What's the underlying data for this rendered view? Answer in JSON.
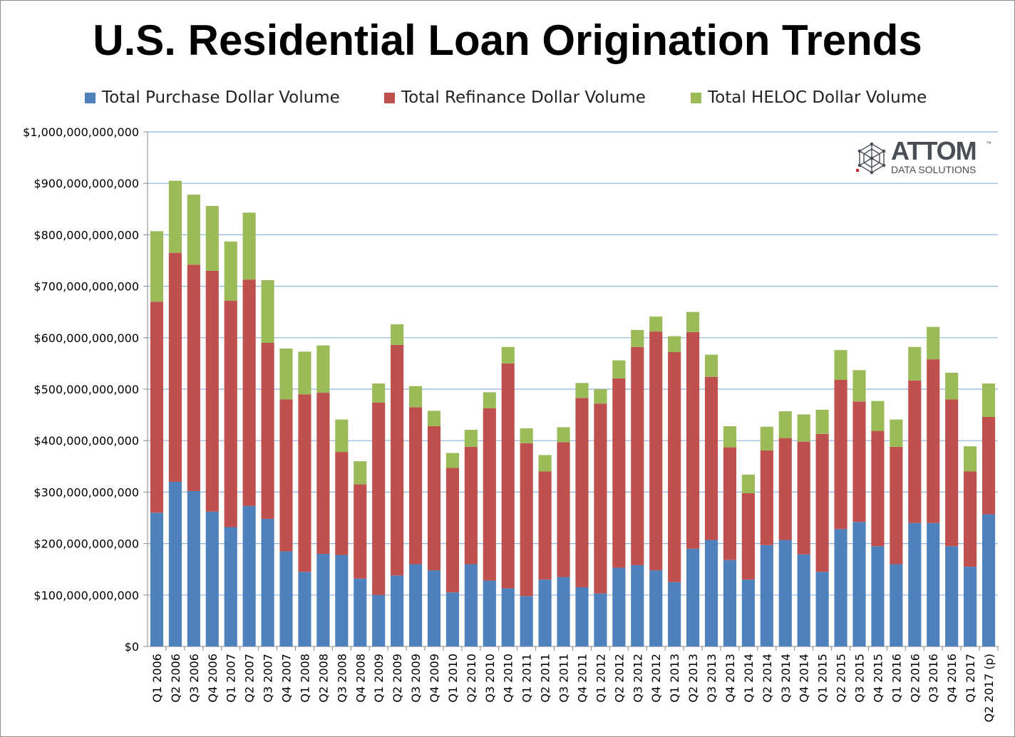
{
  "chart_data": {
    "type": "bar",
    "stacked": true,
    "title": "U.S. Residential Loan Origination Trends",
    "categories": [
      "Q1 2006",
      "Q2 2006",
      "Q3 2006",
      "Q4 2006",
      "Q1 2007",
      "Q2 2007",
      "Q3 2007",
      "Q4 2007",
      "Q1 2008",
      "Q2 2008",
      "Q3 2008",
      "Q4 2008",
      "Q1 2009",
      "Q2 2009",
      "Q3 2009",
      "Q4 2009",
      "Q1 2010",
      "Q2 2010",
      "Q3 2010",
      "Q4 2010",
      "Q1 2011",
      "Q2 2011",
      "Q3 2011",
      "Q4 2011",
      "Q1 2012",
      "Q2 2012",
      "Q3 2012",
      "Q4 2012",
      "Q1 2013",
      "Q2 2013",
      "Q3 2013",
      "Q4 2013",
      "Q1 2014",
      "Q2 2014",
      "Q3 2014",
      "Q4 2014",
      "Q1 2015",
      "Q2 2015",
      "Q3 2015",
      "Q4 2015",
      "Q1 2016",
      "Q2 2016",
      "Q3 2016",
      "Q4 2016",
      "Q1 2017",
      "Q2 2017 (p)"
    ],
    "series": [
      {
        "name": "Total Purchase Dollar Volume",
        "color": "#4f81bd",
        "values": [
          260,
          320,
          302,
          262,
          232,
          273,
          248,
          185,
          145,
          180,
          178,
          132,
          100,
          138,
          160,
          148,
          105,
          160,
          128,
          113,
          98,
          130,
          135,
          115,
          103,
          153,
          158,
          148,
          125,
          190,
          207,
          168,
          130,
          197,
          207,
          179,
          145,
          228,
          242,
          195,
          160,
          240,
          240,
          195,
          155,
          257
        ]
      },
      {
        "name": "Total Refinance Dollar Volume",
        "color": "#c0504d",
        "values": [
          410,
          445,
          440,
          468,
          440,
          440,
          342,
          295,
          345,
          313,
          200,
          183,
          374,
          448,
          305,
          280,
          242,
          228,
          335,
          437,
          297,
          210,
          262,
          368,
          369,
          368,
          424,
          464,
          447,
          421,
          317,
          219,
          168,
          184,
          198,
          219,
          268,
          290,
          234,
          224,
          228,
          277,
          318,
          285,
          185,
          189
        ]
      },
      {
        "name": "Total HELOC Dollar Volume",
        "color": "#9bbb59",
        "values": [
          137,
          140,
          136,
          126,
          115,
          130,
          122,
          99,
          83,
          92,
          63,
          45,
          37,
          40,
          41,
          30,
          29,
          33,
          31,
          32,
          29,
          32,
          29,
          29,
          28,
          35,
          33,
          29,
          31,
          39,
          43,
          41,
          36,
          46,
          52,
          53,
          47,
          58,
          61,
          58,
          53,
          65,
          63,
          52,
          49,
          65
        ]
      }
    ],
    "value_unit": "billion USD",
    "ylim": [
      0,
      1000000000000
    ],
    "yticks": [
      "$0",
      "$100,000,000,000",
      "$200,000,000,000",
      "$300,000,000,000",
      "$400,000,000,000",
      "$500,000,000,000",
      "$600,000,000,000",
      "$700,000,000,000",
      "$800,000,000,000",
      "$900,000,000,000",
      "$1,000,000,000,000"
    ],
    "grid": true,
    "legend_position": "top"
  },
  "logo": {
    "word": "ATTOM",
    "tm": "™",
    "subtitle": "DATA SOLUTIONS"
  }
}
